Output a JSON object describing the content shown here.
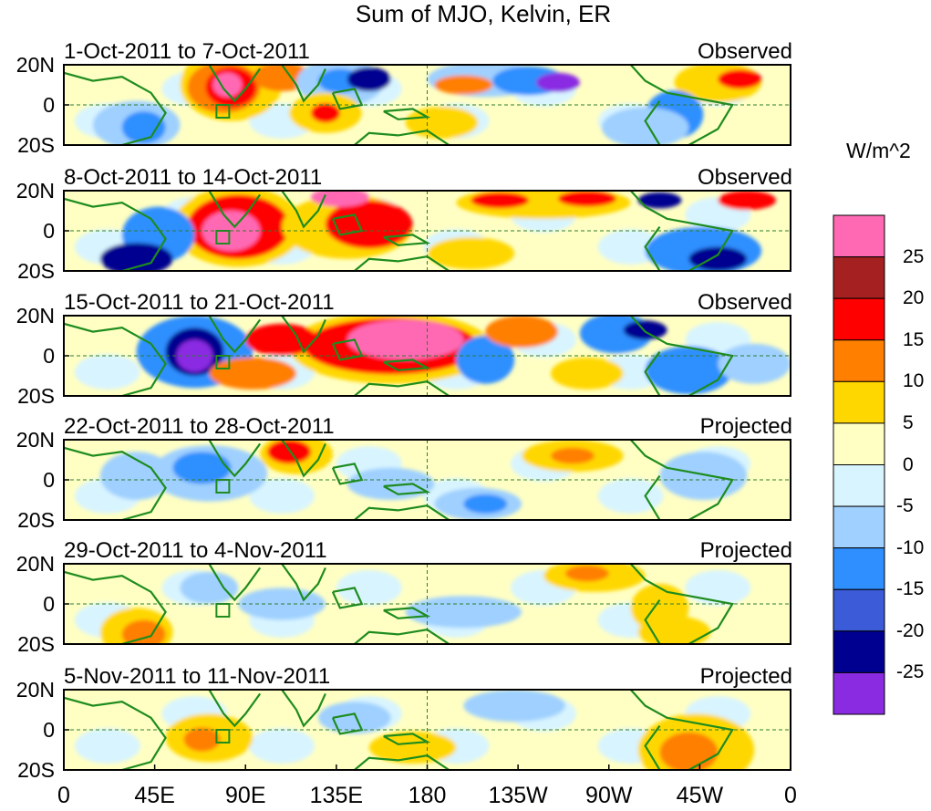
{
  "title": "Sum of MJO, Kelvin, ER",
  "panels": [
    {
      "date_range": "1-Oct-2011 to 7-Oct-2011",
      "type": "Observed"
    },
    {
      "date_range": "8-Oct-2011 to 14-Oct-2011",
      "type": "Observed"
    },
    {
      "date_range": "15-Oct-2011 to 21-Oct-2011",
      "type": "Observed"
    },
    {
      "date_range": "22-Oct-2011 to 28-Oct-2011",
      "type": "Projected"
    },
    {
      "date_range": "29-Oct-2011 to 4-Nov-2011",
      "type": "Projected"
    },
    {
      "date_range": "5-Nov-2011 to 11-Nov-2011",
      "type": "Projected"
    }
  ],
  "y_axis_labels": [
    "20N",
    "0",
    "20S"
  ],
  "x_axis_labels": [
    "0",
    "45E",
    "90E",
    "135E",
    "180",
    "135W",
    "90W",
    "45W",
    "0"
  ],
  "colorbar": {
    "unit": "W/m^2",
    "labels": [
      "25",
      "20",
      "15",
      "10",
      "5",
      "0",
      "-5",
      "-10",
      "-15",
      "-20",
      "-25"
    ],
    "colors": [
      "#ff69b4",
      "#a52020",
      "#ff0000",
      "#ff7f00",
      "#ffd700",
      "#ffffc4",
      "#d8f4ff",
      "#9fd0ff",
      "#2f8fff",
      "#3c5bd8",
      "#000090",
      "#8a2be2"
    ]
  },
  "anomaly_colors": {
    "pos5": "#ffd700",
    "pos10": "#ff7f00",
    "pos15": "#ff0000",
    "pos20": "#a52020",
    "pos25": "#ff69b4",
    "neg5": "#9fd0ff",
    "neg10": "#2f8fff",
    "neg15": "#3c5bd8",
    "neg20": "#000090",
    "neg25": "#8a2be2",
    "background": "#ffffc4",
    "land": "#1e8c1e"
  }
}
